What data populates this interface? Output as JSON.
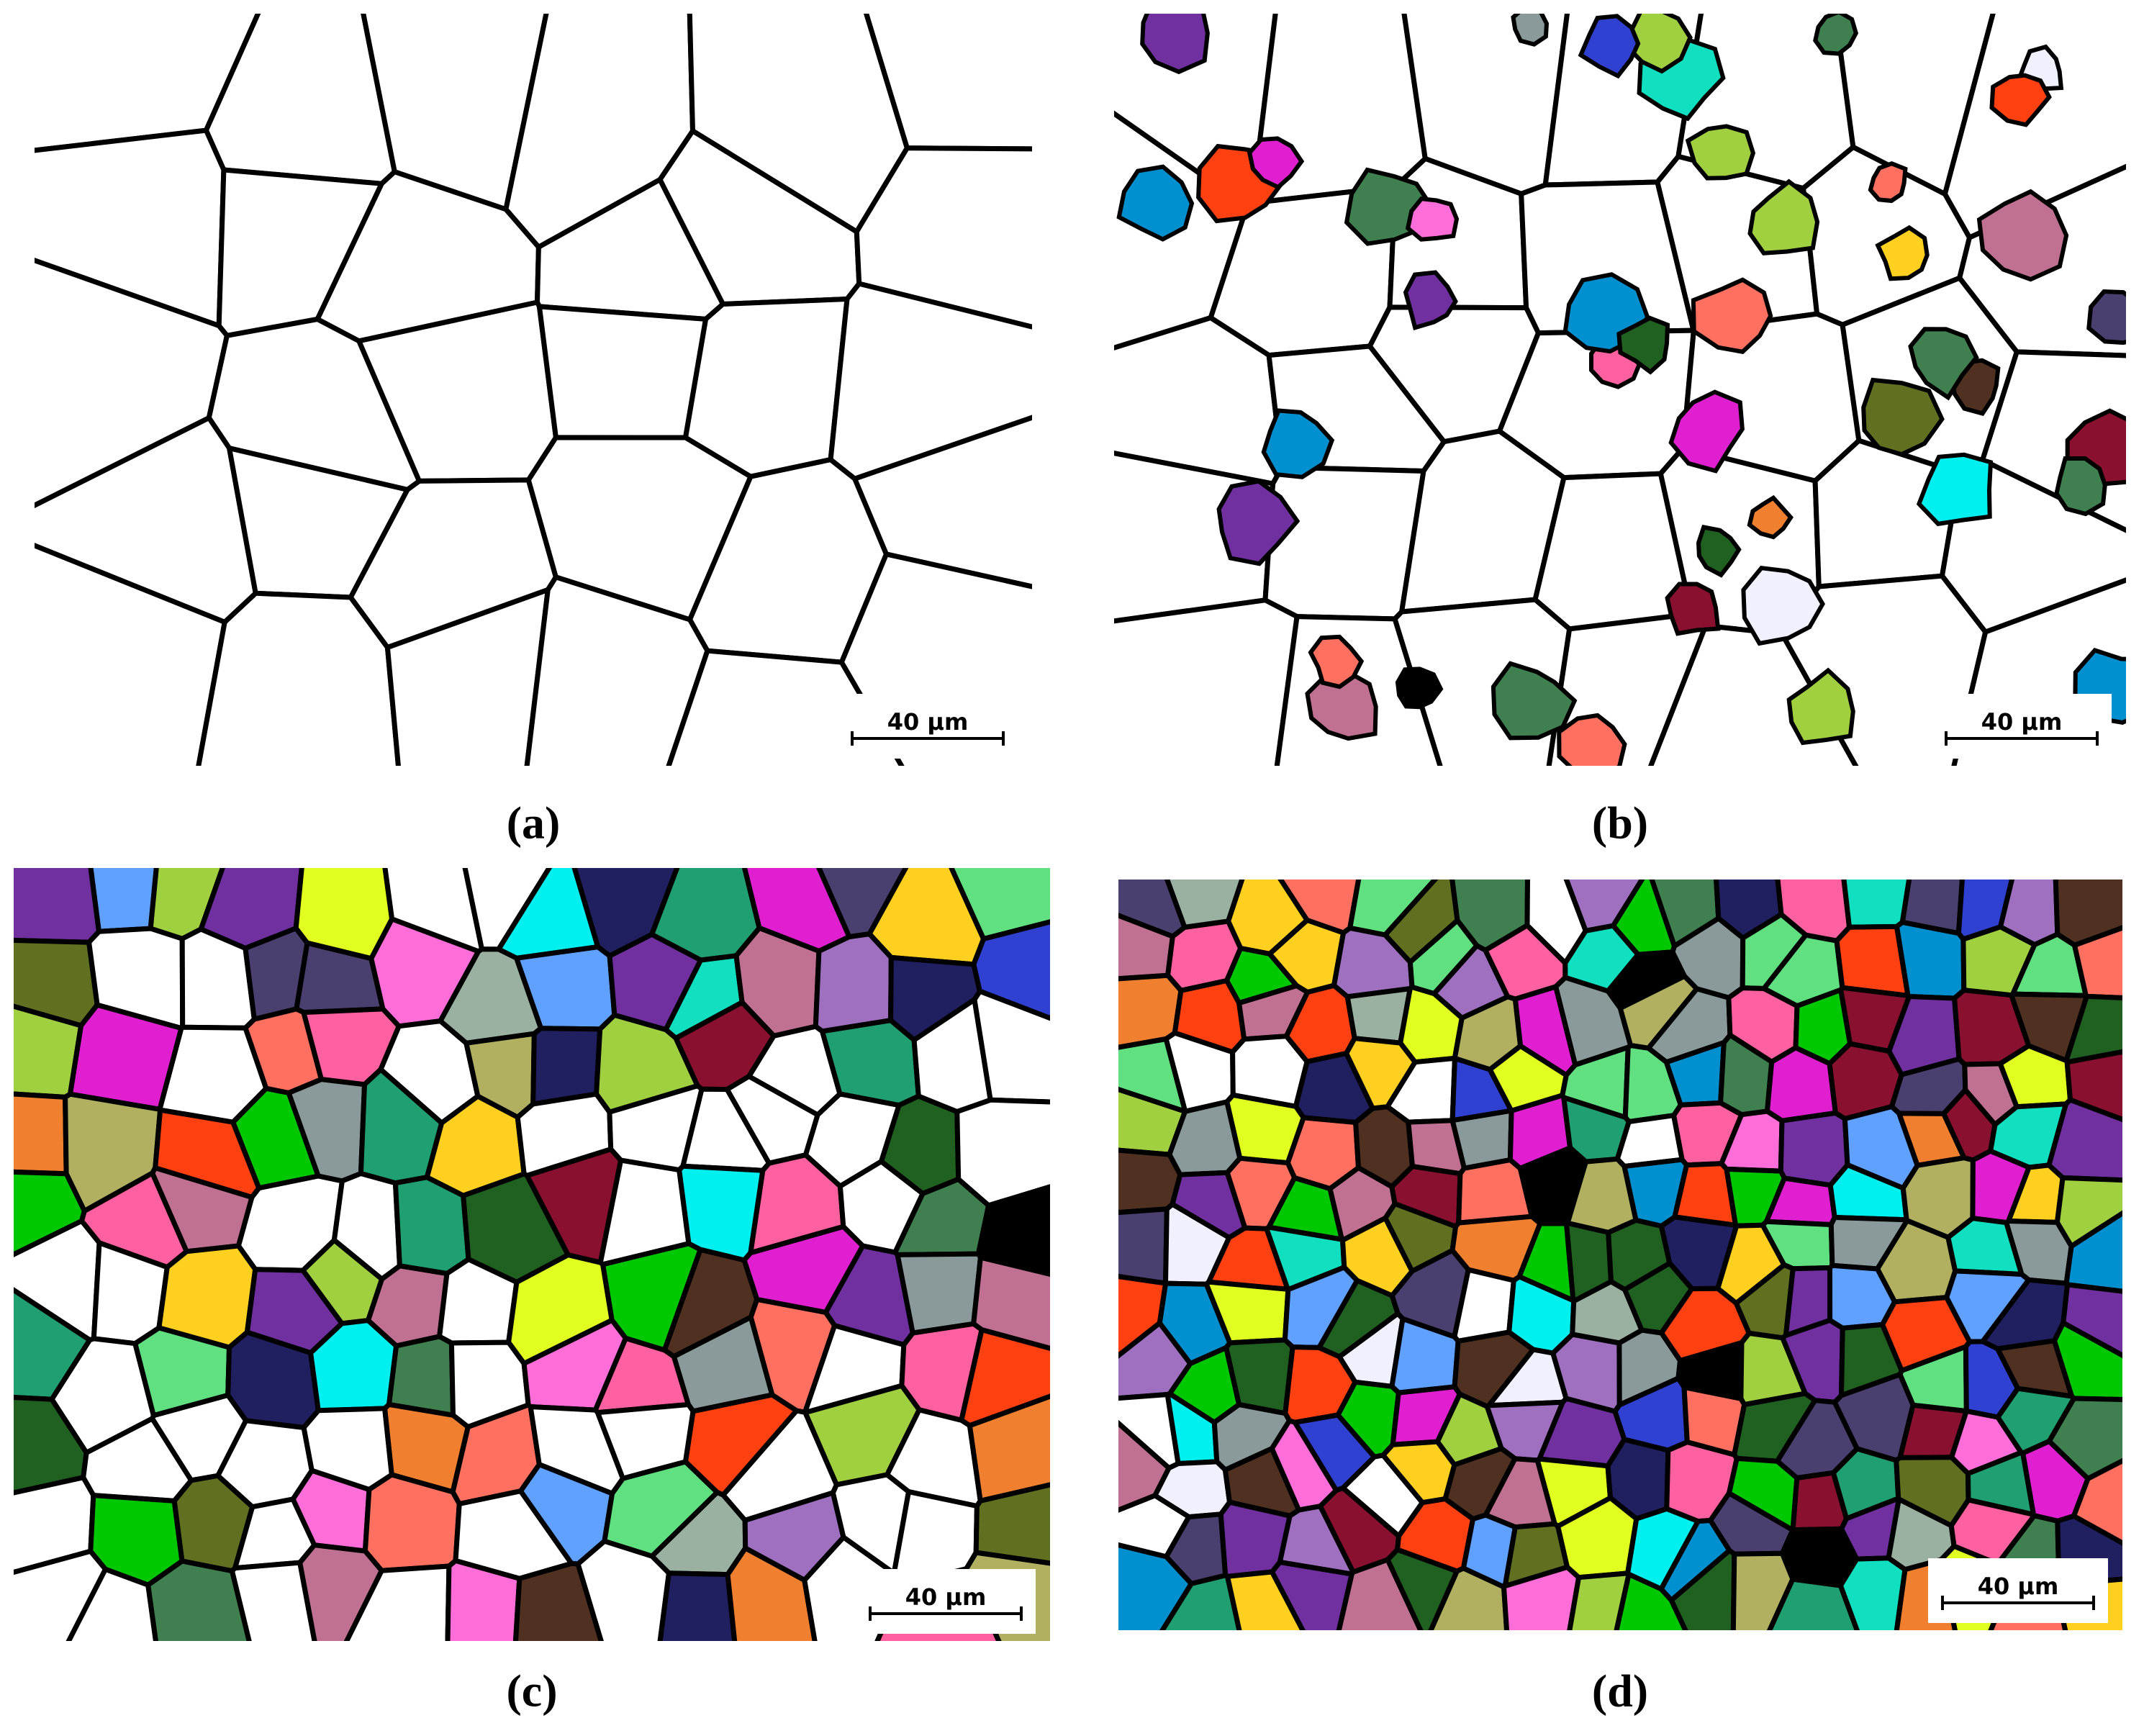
{
  "panels": [
    {
      "label": "(a)",
      "scale_bar": "40 μm"
    },
    {
      "label": "(b)",
      "scale_bar": "40 μm"
    },
    {
      "label": "(c)",
      "scale_bar": "40 μm"
    },
    {
      "label": "(d)",
      "scale_bar": "40 μm"
    }
  ]
}
